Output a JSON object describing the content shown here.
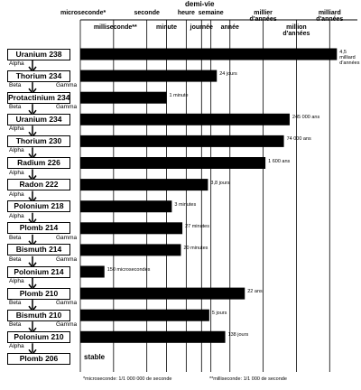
{
  "chart_data": {
    "type": "bar",
    "orientation": "horizontal",
    "x_label": "demi-vie",
    "categories": [
      "Uranium 238",
      "Thorium 234",
      "Protactinium 234",
      "Uranium 234",
      "Thorium 230",
      "Radium 226",
      "Radon 222",
      "Polonium 218",
      "Plomb 214",
      "Bismuth 214",
      "Polonium 214",
      "Plomb 210",
      "Bismuth 210",
      "Polonium 210",
      "Plomb 206"
    ],
    "decays": [
      [
        "Alpha"
      ],
      [
        "Beta",
        "Gamma"
      ],
      [
        "Beta",
        "Gamma"
      ],
      [
        "Alpha"
      ],
      [
        "Alpha"
      ],
      [
        "Alpha"
      ],
      [
        "Alpha"
      ],
      [
        "Alpha"
      ],
      [
        "Beta",
        "Gamma"
      ],
      [
        "Beta",
        "Gamma"
      ],
      [
        "Alpha"
      ],
      [
        "Beta",
        "Gamma"
      ],
      [
        "Beta",
        "Gamma"
      ],
      [
        "Alpha"
      ],
      []
    ],
    "values": [
      142009200000000000,
      2073600,
      60,
      7731612000000,
      2335262400000,
      50492160000,
      328320,
      180,
      1620,
      1200,
      0.00015,
      694267200,
      432000,
      11923200,
      null
    ],
    "value_labels": [
      "4,5 milliard d'années",
      "24 jours",
      "1 minute",
      "245 000 ans",
      "74 000 ans",
      "1 600 ans",
      "3,8 jours",
      "3 minutes",
      "27 minutes",
      "20 minutes",
      "150 microsecondes",
      "22 ans",
      "5 jours",
      "138 jours",
      "stable"
    ],
    "color": "#000000",
    "xscale": "log",
    "xlim": [
      1e-06,
      10000000000000000000
    ],
    "xticks": [
      {
        "value": 1e-06,
        "label": "microseconde*"
      },
      {
        "value": 0.001,
        "label": "milliseconde**"
      },
      {
        "value": 1,
        "label": "seconde"
      },
      {
        "value": 60,
        "label": "minute"
      },
      {
        "value": 3600,
        "label": "heure"
      },
      {
        "value": 86400,
        "label": "journée"
      },
      {
        "value": 604800,
        "label": "semaine"
      },
      {
        "value": 31557600,
        "label": "année"
      },
      {
        "value": 31557600000,
        "label": "millier d'années"
      },
      {
        "value": 31557600000000,
        "label": "million d'années"
      },
      {
        "value": 31557600000000000,
        "label": "milliard d'années"
      }
    ],
    "grid": true,
    "footnotes": [
      "*microseconde: 1/1 000 000 de seconde",
      "**milliseconde: 1/1 000 de seconde"
    ]
  }
}
